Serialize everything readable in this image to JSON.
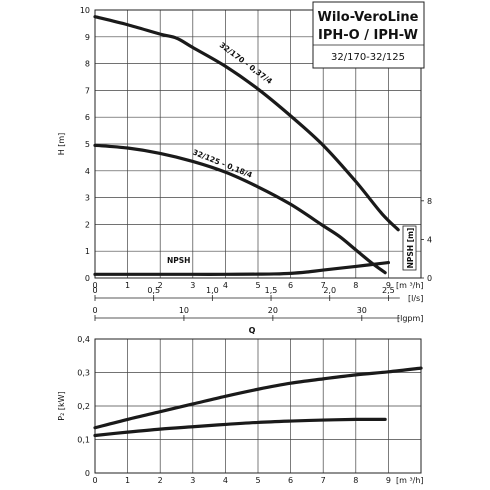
{
  "title_box": {
    "line1": "Wilo-VeroLine",
    "line2": "IPH-O / IPH-W",
    "line3": "32/170-32/125"
  },
  "chart_data": [
    {
      "type": "line",
      "ylabel": "H [m]",
      "xlabel": "Q",
      "xlim": [
        0,
        10
      ],
      "ylim": [
        0,
        10
      ],
      "x_ticks": [
        "0",
        "1",
        "2",
        "3",
        "4",
        "5",
        "6",
        "7",
        "8",
        "9"
      ],
      "y_ticks": [
        "0",
        "1",
        "2",
        "3",
        "4",
        "5",
        "6",
        "7",
        "8",
        "9",
        "10"
      ],
      "unit_m3h": "[m ³/h]",
      "ls_axis": {
        "ticks": [
          "0",
          "0,5",
          "1,0",
          "1,5",
          "2,0",
          "2,5"
        ],
        "values": [
          0,
          0.5,
          1.0,
          1.5,
          2.0,
          2.5
        ],
        "unit": "[l/s]"
      },
      "lgpm_axis": {
        "ticks": [
          "0",
          "10",
          "20",
          "30"
        ],
        "values": [
          0,
          10,
          20,
          30
        ],
        "unit": "[lgpm]"
      },
      "npsh_axis": {
        "label": "NPSH [m]",
        "ticks": [
          "0",
          "4",
          "8"
        ],
        "values": [
          0,
          4,
          8
        ],
        "range": [
          0,
          10
        ]
      },
      "series": [
        {
          "name": "32/170 - 0,37/4",
          "x": [
            0,
            1,
            2,
            2.5,
            3,
            4,
            5,
            6,
            7,
            8,
            8.8,
            9.3
          ],
          "y": [
            9.75,
            9.45,
            9.1,
            8.95,
            8.6,
            7.9,
            7.05,
            6.05,
            4.95,
            3.6,
            2.4,
            1.8
          ]
        },
        {
          "name": "32/125 - 0,18/4",
          "x": [
            0,
            1,
            2,
            3,
            4,
            5,
            6,
            7,
            7.5,
            8,
            8.5,
            8.9
          ],
          "y": [
            4.95,
            4.85,
            4.65,
            4.35,
            3.95,
            3.4,
            2.75,
            1.95,
            1.55,
            1.05,
            0.55,
            0.2
          ]
        },
        {
          "name": "NPSH",
          "x": [
            0,
            1,
            2,
            3,
            4,
            5,
            5.5,
            6,
            6.5,
            7,
            8,
            9
          ],
          "y": [
            0.38,
            0.38,
            0.38,
            0.38,
            0.38,
            0.4,
            0.42,
            0.48,
            0.62,
            0.82,
            1.2,
            1.6
          ]
        }
      ],
      "annotations": [
        "32/170 - 0,37/4",
        "32/125 - 0,18/4",
        "NPSH"
      ]
    },
    {
      "type": "line",
      "ylabel": "P₂ [kW]",
      "xlim": [
        0,
        10
      ],
      "ylim": [
        0,
        0.4
      ],
      "x_ticks": [
        "0",
        "1",
        "2",
        "3",
        "4",
        "5",
        "6",
        "7",
        "8",
        "9"
      ],
      "y_ticks": [
        "0",
        "0,1",
        "0,2",
        "0,3",
        "0,4"
      ],
      "unit_m3h": "[m ³/h]",
      "series": [
        {
          "x": [
            0,
            1,
            2,
            3,
            4,
            5,
            6,
            7,
            8,
            9,
            10
          ],
          "y": [
            0.135,
            0.16,
            0.183,
            0.206,
            0.229,
            0.25,
            0.268,
            0.281,
            0.293,
            0.302,
            0.313
          ]
        },
        {
          "x": [
            0,
            1,
            2,
            3,
            4,
            5,
            6,
            7,
            8,
            8.9
          ],
          "y": [
            0.112,
            0.122,
            0.131,
            0.138,
            0.145,
            0.151,
            0.155,
            0.158,
            0.16,
            0.16
          ]
        }
      ]
    }
  ]
}
